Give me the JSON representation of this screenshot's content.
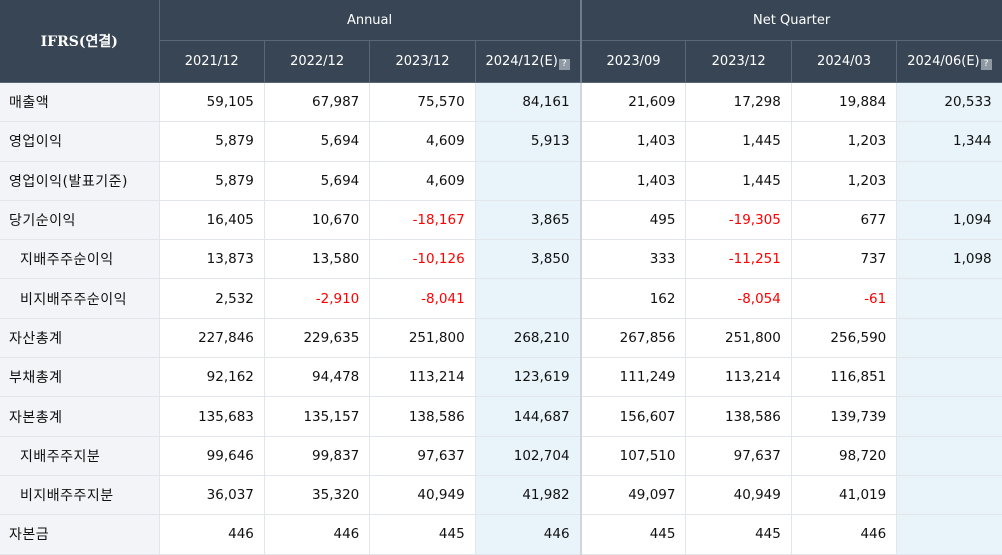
{
  "header": {
    "corner_label": "IFRS(연결)",
    "annual_label": "Annual",
    "quarter_label": "Net Quarter",
    "periods": [
      {
        "label": "2021/12",
        "estimate": false
      },
      {
        "label": "2022/12",
        "estimate": false
      },
      {
        "label": "2023/12",
        "estimate": false
      },
      {
        "label": "2024/12(E)",
        "estimate": true
      },
      {
        "label": "2023/09",
        "estimate": false
      },
      {
        "label": "2023/12",
        "estimate": false
      },
      {
        "label": "2024/03",
        "estimate": false
      },
      {
        "label": "2024/06(E)",
        "estimate": true
      }
    ],
    "estimate_icon": "question-mark-icon",
    "estimate_icon_glyph": "?"
  },
  "colors": {
    "header_bg": "#384554",
    "label_bg": "#f3f4f8",
    "estimate_bg": "#e8f4fa",
    "negative": "#ff0000"
  },
  "rows": [
    {
      "label": "매출액",
      "indent": false,
      "values": [
        "59,105",
        "67,987",
        "75,570",
        "84,161",
        "21,609",
        "17,298",
        "19,884",
        "20,533"
      ]
    },
    {
      "label": "영업이익",
      "indent": false,
      "values": [
        "5,879",
        "5,694",
        "4,609",
        "5,913",
        "1,403",
        "1,445",
        "1,203",
        "1,344"
      ]
    },
    {
      "label": "영업이익(발표기준)",
      "indent": false,
      "values": [
        "5,879",
        "5,694",
        "4,609",
        "",
        "1,403",
        "1,445",
        "1,203",
        ""
      ]
    },
    {
      "label": "당기순이익",
      "indent": false,
      "values": [
        "16,405",
        "10,670",
        "-18,167",
        "3,865",
        "495",
        "-19,305",
        "677",
        "1,094"
      ]
    },
    {
      "label": "지배주주순이익",
      "indent": true,
      "values": [
        "13,873",
        "13,580",
        "-10,126",
        "3,850",
        "333",
        "-11,251",
        "737",
        "1,098"
      ]
    },
    {
      "label": "비지배주주순이익",
      "indent": true,
      "values": [
        "2,532",
        "-2,910",
        "-8,041",
        "",
        "162",
        "-8,054",
        "-61",
        ""
      ]
    },
    {
      "label": "자산총계",
      "indent": false,
      "values": [
        "227,846",
        "229,635",
        "251,800",
        "268,210",
        "267,856",
        "251,800",
        "256,590",
        ""
      ]
    },
    {
      "label": "부채총계",
      "indent": false,
      "values": [
        "92,162",
        "94,478",
        "113,214",
        "123,619",
        "111,249",
        "113,214",
        "116,851",
        ""
      ]
    },
    {
      "label": "자본총계",
      "indent": false,
      "values": [
        "135,683",
        "135,157",
        "138,586",
        "144,687",
        "156,607",
        "138,586",
        "139,739",
        ""
      ]
    },
    {
      "label": "지배주주지분",
      "indent": true,
      "values": [
        "99,646",
        "99,837",
        "97,637",
        "102,704",
        "107,510",
        "97,637",
        "98,720",
        ""
      ]
    },
    {
      "label": "비지배주주지분",
      "indent": true,
      "values": [
        "36,037",
        "35,320",
        "40,949",
        "41,982",
        "49,097",
        "40,949",
        "41,019",
        ""
      ]
    },
    {
      "label": "자본금",
      "indent": false,
      "values": [
        "446",
        "446",
        "445",
        "446",
        "445",
        "445",
        "446",
        ""
      ]
    }
  ]
}
